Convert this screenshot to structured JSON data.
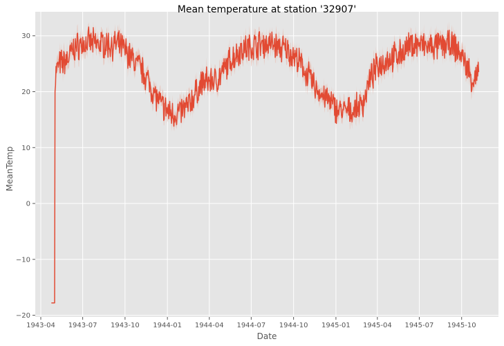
{
  "chart_data": {
    "type": "line",
    "title": "Mean temperature at station '32907'",
    "xlabel": "Date",
    "ylabel": "MeanTemp",
    "x_range": [
      "1943-03-20",
      "1945-12-20"
    ],
    "ylim": [
      -20.3,
      34.3
    ],
    "grid": true,
    "legend": "none",
    "style": "ggplot",
    "colors": {
      "line": "#E24A33",
      "band": "#E8B6A9",
      "panel": "#E5E5E5",
      "grid": "#FFFFFF"
    },
    "x_ticks": [
      "1943-04",
      "1943-07",
      "1943-10",
      "1944-01",
      "1944-04",
      "1944-07",
      "1944-10",
      "1945-01",
      "1945-04",
      "1945-07",
      "1945-10"
    ],
    "y_ticks": [
      -20,
      -10,
      0,
      10,
      20,
      30
    ],
    "series": [
      {
        "values": [
          [
            "1943-04-24",
            -17.8
          ],
          [
            "1943-05-01",
            -17.8
          ],
          [
            "1943-05-02",
            21.5
          ],
          [
            "1943-05-04",
            23.5
          ],
          [
            "1943-05-10",
            24.8
          ],
          [
            "1943-05-20",
            25.2
          ],
          [
            "1943-05-31",
            26.0
          ],
          [
            "1943-06-10",
            27.5
          ],
          [
            "1943-06-20",
            28.2
          ],
          [
            "1943-07-01",
            28.5
          ],
          [
            "1943-07-15",
            28.8
          ],
          [
            "1943-08-01",
            28.5
          ],
          [
            "1943-08-15",
            28.6
          ],
          [
            "1943-09-01",
            28.3
          ],
          [
            "1943-09-15",
            28.4
          ],
          [
            "1943-10-01",
            27.5
          ],
          [
            "1943-10-15",
            26.0
          ],
          [
            "1943-11-01",
            24.5
          ],
          [
            "1943-11-15",
            22.8
          ],
          [
            "1943-12-01",
            20.0
          ],
          [
            "1943-12-15",
            18.0
          ],
          [
            "1944-01-01",
            16.5
          ],
          [
            "1944-01-15",
            16.0
          ],
          [
            "1944-02-01",
            16.5
          ],
          [
            "1944-02-15",
            17.5
          ],
          [
            "1944-03-01",
            19.5
          ],
          [
            "1944-03-15",
            21.5
          ],
          [
            "1944-04-01",
            22.0
          ],
          [
            "1944-04-15",
            22.0
          ],
          [
            "1944-05-01",
            23.5
          ],
          [
            "1944-05-15",
            25.5
          ],
          [
            "1944-06-01",
            27.0
          ],
          [
            "1944-06-15",
            27.8
          ],
          [
            "1944-07-01",
            28.0
          ],
          [
            "1944-07-15",
            28.5
          ],
          [
            "1944-08-01",
            28.5
          ],
          [
            "1944-08-15",
            28.6
          ],
          [
            "1944-09-01",
            27.8
          ],
          [
            "1944-09-15",
            27.5
          ],
          [
            "1944-10-01",
            26.5
          ],
          [
            "1944-10-15",
            25.0
          ],
          [
            "1944-11-01",
            23.0
          ],
          [
            "1944-11-15",
            21.0
          ],
          [
            "1944-12-01",
            19.5
          ],
          [
            "1944-12-15",
            18.5
          ],
          [
            "1945-01-01",
            17.0
          ],
          [
            "1945-01-15",
            16.5
          ],
          [
            "1945-02-01",
            16.5
          ],
          [
            "1945-02-15",
            17.0
          ],
          [
            "1945-03-01",
            18.0
          ],
          [
            "1945-03-15",
            22.0
          ],
          [
            "1945-04-01",
            24.5
          ],
          [
            "1945-04-15",
            25.5
          ],
          [
            "1945-05-01",
            26.0
          ],
          [
            "1945-05-15",
            26.5
          ],
          [
            "1945-06-01",
            27.5
          ],
          [
            "1945-06-15",
            28.5
          ],
          [
            "1945-07-01",
            28.5
          ],
          [
            "1945-07-15",
            28.0
          ],
          [
            "1945-08-01",
            28.0
          ],
          [
            "1945-08-15",
            28.2
          ],
          [
            "1945-09-01",
            28.5
          ],
          [
            "1945-09-15",
            28.0
          ],
          [
            "1945-10-01",
            26.5
          ],
          [
            "1945-10-15",
            24.0
          ],
          [
            "1945-10-25",
            22.0
          ],
          [
            "1945-11-01",
            22.5
          ],
          [
            "1945-11-07",
            23.5
          ]
        ]
      }
    ]
  }
}
